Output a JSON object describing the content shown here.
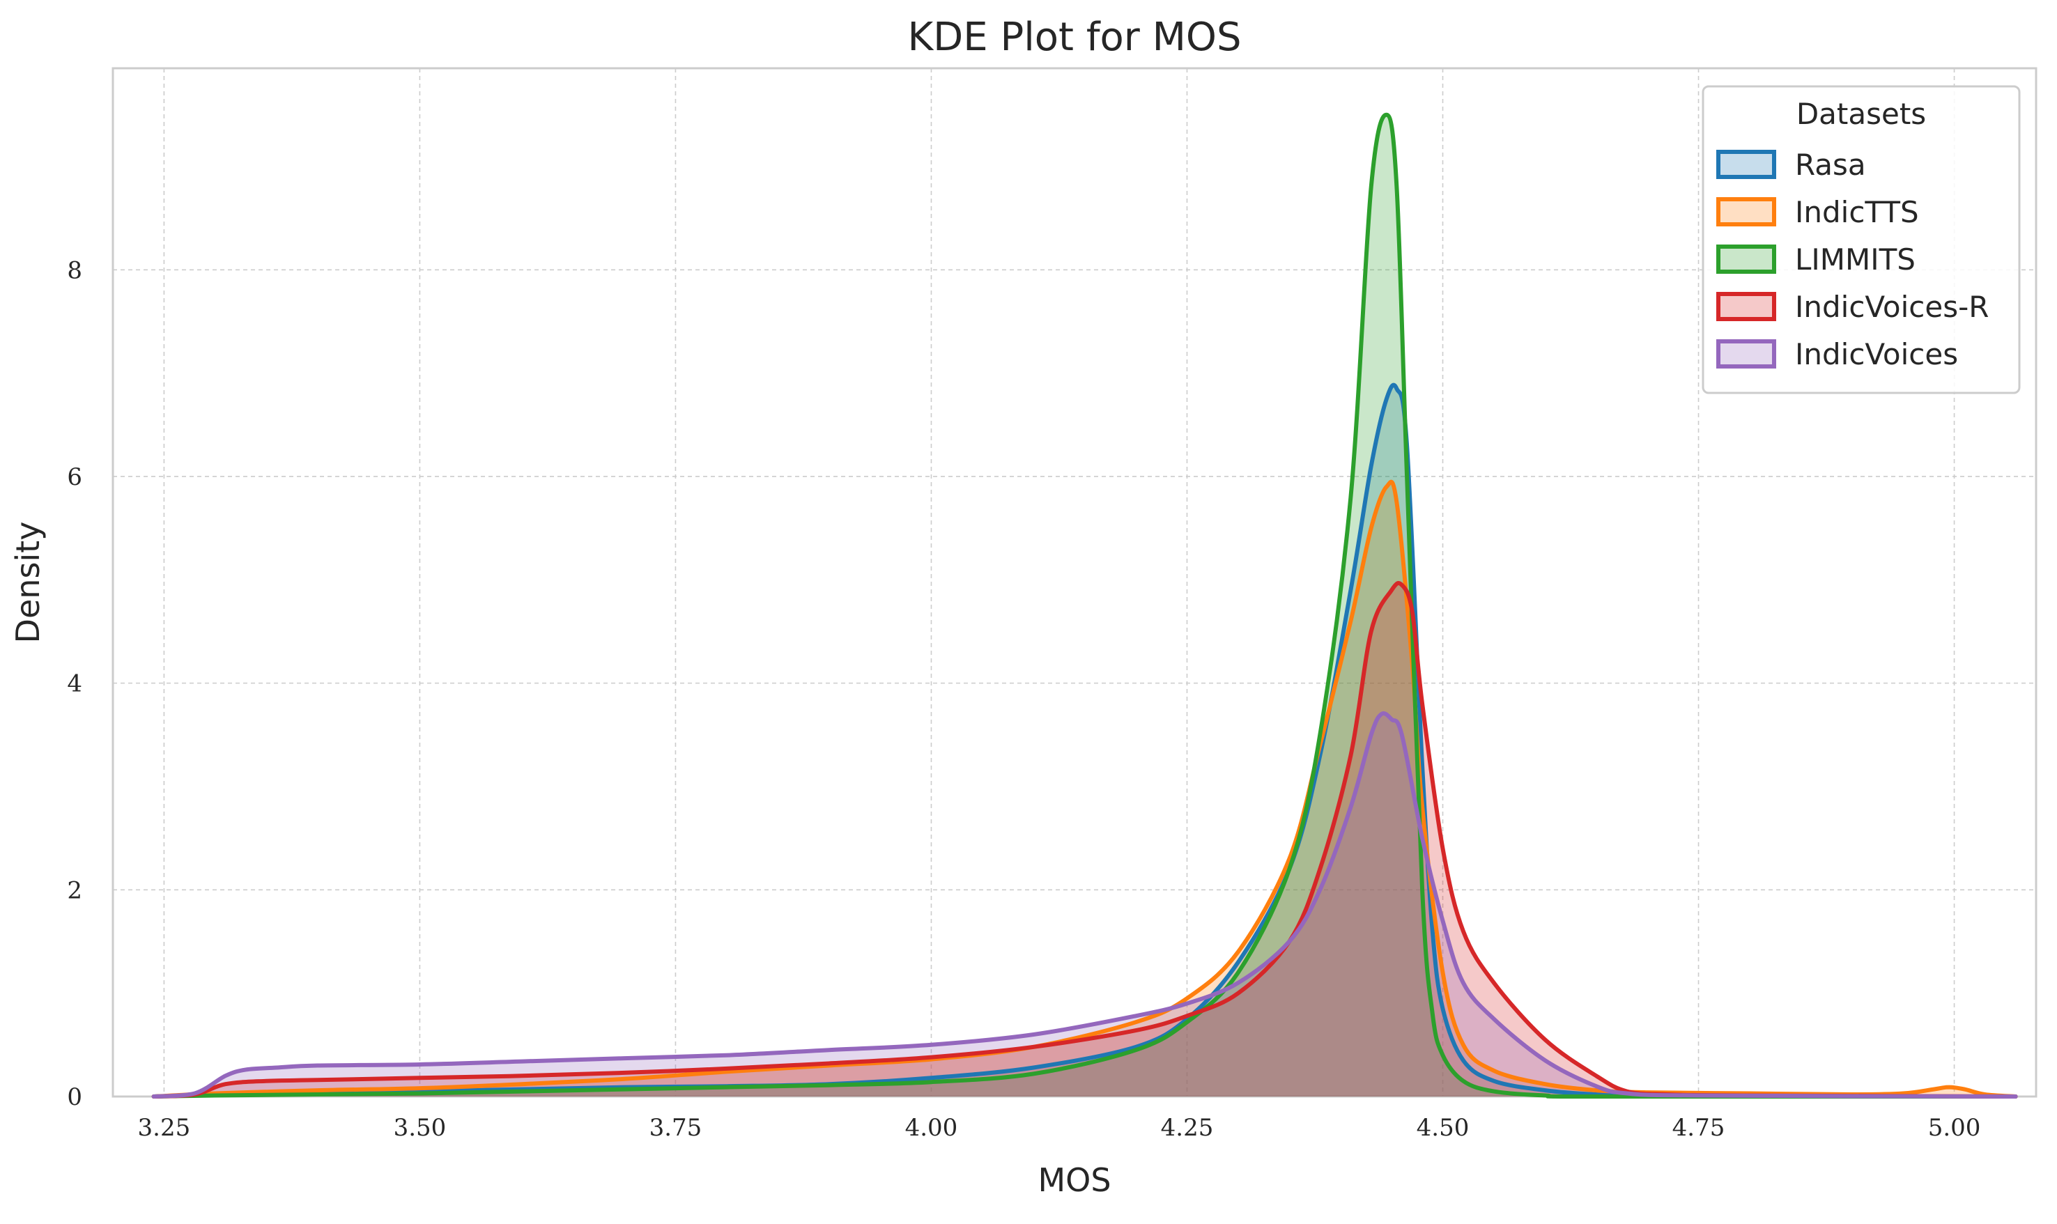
{
  "chart_data": {
    "type": "area",
    "title": "KDE Plot for MOS",
    "xlabel": "MOS",
    "ylabel": "Density",
    "xlim": [
      3.2,
      5.08
    ],
    "ylim": [
      0,
      9.95
    ],
    "xticks": [
      3.25,
      3.5,
      3.75,
      4.0,
      4.25,
      4.5,
      4.75,
      5.0
    ],
    "xtick_labels": [
      "3.25",
      "3.50",
      "3.75",
      "4.00",
      "4.25",
      "4.50",
      "4.75",
      "5.00"
    ],
    "yticks": [
      0,
      2,
      4,
      6,
      8
    ],
    "ytick_labels": [
      "0",
      "2",
      "4",
      "6",
      "8"
    ],
    "grid": true,
    "legend": {
      "title": "Datasets",
      "placement": "top-right"
    },
    "series": [
      {
        "name": "Rasa",
        "color": "#1f77b4",
        "points": [
          [
            3.24,
            0
          ],
          [
            3.3,
            0.02
          ],
          [
            3.4,
            0.04
          ],
          [
            3.5,
            0.05
          ],
          [
            3.6,
            0.07
          ],
          [
            3.7,
            0.09
          ],
          [
            3.8,
            0.1
          ],
          [
            3.9,
            0.12
          ],
          [
            4.0,
            0.18
          ],
          [
            4.1,
            0.28
          ],
          [
            4.2,
            0.48
          ],
          [
            4.25,
            0.75
          ],
          [
            4.3,
            1.3
          ],
          [
            4.35,
            2.2
          ],
          [
            4.38,
            3.3
          ],
          [
            4.41,
            4.9
          ],
          [
            4.43,
            6.1
          ],
          [
            4.445,
            6.75
          ],
          [
            4.455,
            6.85
          ],
          [
            4.465,
            6.3
          ],
          [
            4.48,
            3.2
          ],
          [
            4.49,
            1.6
          ],
          [
            4.5,
            0.85
          ],
          [
            4.52,
            0.35
          ],
          [
            4.55,
            0.15
          ],
          [
            4.6,
            0.06
          ],
          [
            4.65,
            0.02
          ],
          [
            4.7,
            0.01
          ],
          [
            4.8,
            0
          ],
          [
            5.06,
            0
          ]
        ]
      },
      {
        "name": "IndicTTS",
        "color": "#ff7f0e",
        "points": [
          [
            3.24,
            0
          ],
          [
            3.3,
            0.03
          ],
          [
            3.4,
            0.06
          ],
          [
            3.5,
            0.08
          ],
          [
            3.6,
            0.12
          ],
          [
            3.7,
            0.17
          ],
          [
            3.8,
            0.24
          ],
          [
            3.9,
            0.3
          ],
          [
            4.0,
            0.36
          ],
          [
            4.1,
            0.48
          ],
          [
            4.2,
            0.72
          ],
          [
            4.25,
            0.95
          ],
          [
            4.3,
            1.4
          ],
          [
            4.35,
            2.3
          ],
          [
            4.38,
            3.4
          ],
          [
            4.41,
            4.6
          ],
          [
            4.43,
            5.5
          ],
          [
            4.445,
            5.9
          ],
          [
            4.455,
            5.75
          ],
          [
            4.47,
            4.2
          ],
          [
            4.48,
            2.8
          ],
          [
            4.5,
            1.2
          ],
          [
            4.52,
            0.5
          ],
          [
            4.55,
            0.25
          ],
          [
            4.6,
            0.12
          ],
          [
            4.65,
            0.06
          ],
          [
            4.7,
            0.04
          ],
          [
            4.8,
            0.03
          ],
          [
            4.9,
            0.02
          ],
          [
            4.95,
            0.03
          ],
          [
            4.98,
            0.07
          ],
          [
            4.995,
            0.09
          ],
          [
            5.01,
            0.07
          ],
          [
            5.03,
            0.02
          ],
          [
            5.06,
            0
          ]
        ]
      },
      {
        "name": "LIMMITS",
        "color": "#2ca02c",
        "points": [
          [
            3.24,
            0
          ],
          [
            3.3,
            0.01
          ],
          [
            3.4,
            0.02
          ],
          [
            3.5,
            0.03
          ],
          [
            3.6,
            0.05
          ],
          [
            3.7,
            0.07
          ],
          [
            3.8,
            0.09
          ],
          [
            3.9,
            0.11
          ],
          [
            4.0,
            0.14
          ],
          [
            4.1,
            0.22
          ],
          [
            4.2,
            0.45
          ],
          [
            4.25,
            0.72
          ],
          [
            4.3,
            1.2
          ],
          [
            4.35,
            2.2
          ],
          [
            4.38,
            3.5
          ],
          [
            4.41,
            5.8
          ],
          [
            4.43,
            8.8
          ],
          [
            4.445,
            9.5
          ],
          [
            4.455,
            8.8
          ],
          [
            4.465,
            6.0
          ],
          [
            4.48,
            2.0
          ],
          [
            4.49,
            0.8
          ],
          [
            4.5,
            0.4
          ],
          [
            4.52,
            0.15
          ],
          [
            4.55,
            0.05
          ],
          [
            4.6,
            0.01
          ],
          [
            4.65,
            0
          ],
          [
            5.06,
            0
          ]
        ]
      },
      {
        "name": "IndicVoices-R",
        "color": "#d62728",
        "points": [
          [
            3.24,
            0
          ],
          [
            3.28,
            0.02
          ],
          [
            3.31,
            0.12
          ],
          [
            3.35,
            0.15
          ],
          [
            3.4,
            0.16
          ],
          [
            3.5,
            0.18
          ],
          [
            3.6,
            0.2
          ],
          [
            3.7,
            0.23
          ],
          [
            3.8,
            0.27
          ],
          [
            3.9,
            0.32
          ],
          [
            4.0,
            0.38
          ],
          [
            4.1,
            0.48
          ],
          [
            4.2,
            0.64
          ],
          [
            4.25,
            0.78
          ],
          [
            4.3,
            1.0
          ],
          [
            4.35,
            1.5
          ],
          [
            4.38,
            2.2
          ],
          [
            4.41,
            3.3
          ],
          [
            4.43,
            4.5
          ],
          [
            4.45,
            4.9
          ],
          [
            4.46,
            4.95
          ],
          [
            4.47,
            4.7
          ],
          [
            4.48,
            3.8
          ],
          [
            4.5,
            2.4
          ],
          [
            4.52,
            1.6
          ],
          [
            4.55,
            1.1
          ],
          [
            4.6,
            0.55
          ],
          [
            4.65,
            0.2
          ],
          [
            4.68,
            0.05
          ],
          [
            4.72,
            0.02
          ],
          [
            4.8,
            0.01
          ],
          [
            5.06,
            0
          ]
        ]
      },
      {
        "name": "IndicVoices",
        "color": "#9467bd",
        "points": [
          [
            3.24,
            0
          ],
          [
            3.28,
            0.03
          ],
          [
            3.31,
            0.2
          ],
          [
            3.33,
            0.26
          ],
          [
            3.36,
            0.28
          ],
          [
            3.4,
            0.3
          ],
          [
            3.5,
            0.31
          ],
          [
            3.6,
            0.34
          ],
          [
            3.7,
            0.37
          ],
          [
            3.8,
            0.4
          ],
          [
            3.9,
            0.45
          ],
          [
            4.0,
            0.5
          ],
          [
            4.1,
            0.6
          ],
          [
            4.2,
            0.78
          ],
          [
            4.25,
            0.9
          ],
          [
            4.3,
            1.1
          ],
          [
            4.35,
            1.5
          ],
          [
            4.38,
            2.0
          ],
          [
            4.41,
            2.8
          ],
          [
            4.43,
            3.5
          ],
          [
            4.44,
            3.7
          ],
          [
            4.45,
            3.65
          ],
          [
            4.46,
            3.5
          ],
          [
            4.48,
            2.5
          ],
          [
            4.5,
            1.7
          ],
          [
            4.52,
            1.1
          ],
          [
            4.55,
            0.75
          ],
          [
            4.6,
            0.35
          ],
          [
            4.65,
            0.1
          ],
          [
            4.68,
            0.03
          ],
          [
            4.75,
            0.01
          ],
          [
            5.06,
            0
          ]
        ]
      }
    ]
  }
}
